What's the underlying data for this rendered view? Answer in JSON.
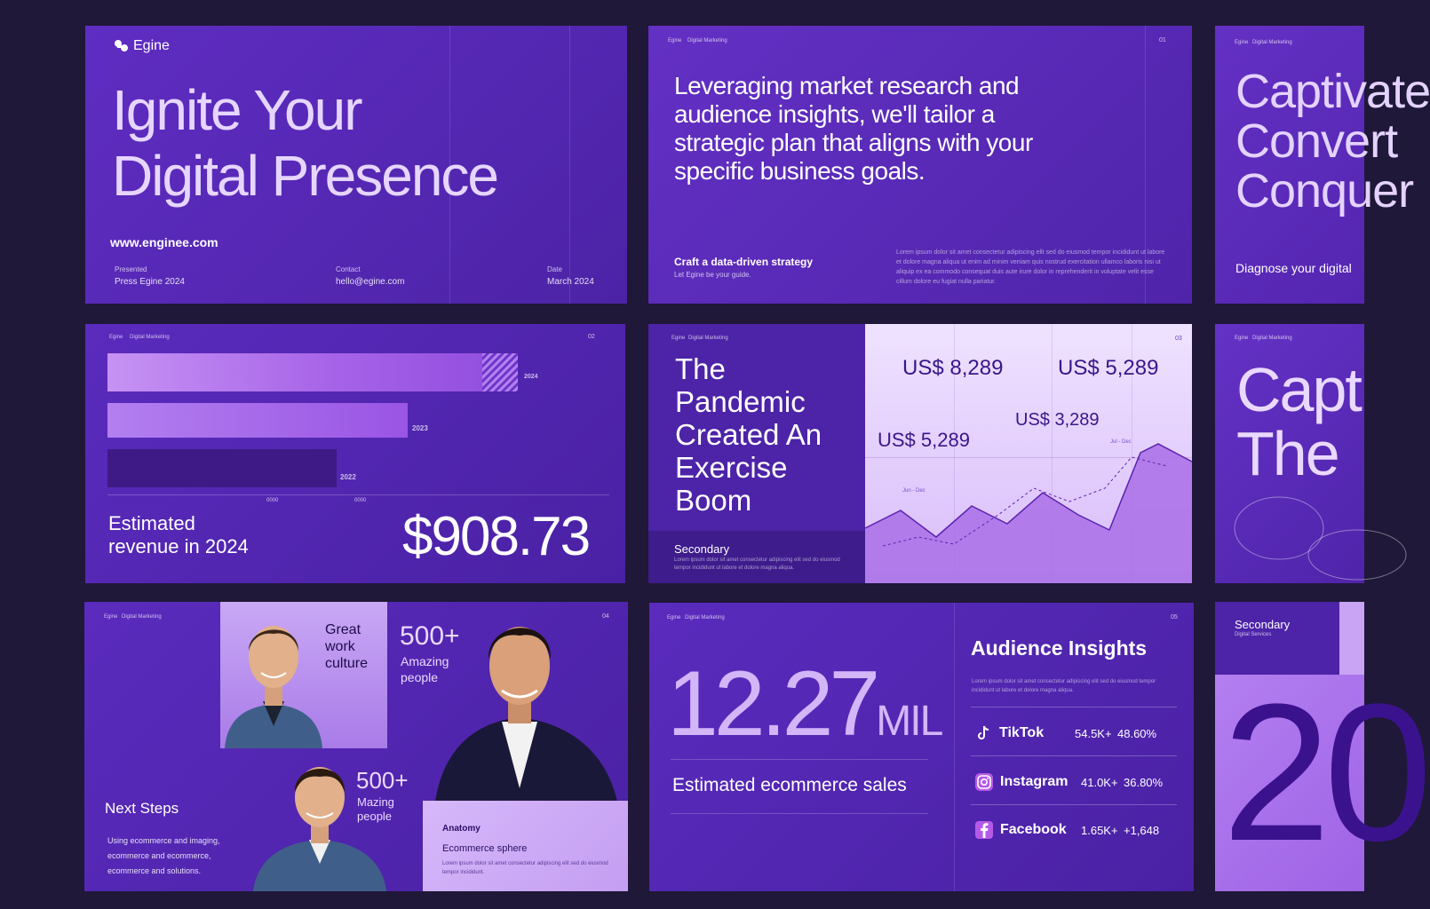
{
  "slide1": {
    "brand": "Egine",
    "title_line1": "Ignite Your",
    "title_line2": "Digital Presence",
    "website": "www.enginee.com",
    "meta": [
      {
        "label": "Presented",
        "value": "Press Egine 2024"
      },
      {
        "label": "Contact",
        "value": "hello@egine.com"
      },
      {
        "label": "Date",
        "value": "March 2024"
      }
    ]
  },
  "slide2": {
    "brand": "Egine",
    "tag": "Digital Marketing",
    "page": "01",
    "quote_lines": [
      "Leveraging market research and",
      "audience insights, we'll tailor a",
      "strategic plan that aligns with your",
      "specific business goals."
    ],
    "sub_title": "Craft a data-driven strategy",
    "sub_text": "Let Egine be your guide.",
    "body": "Lorem ipsum dolor sit amet consectetur adipiscing elit sed do eiusmod tempor incididunt ut labore et dolore magna aliqua ut enim ad minim veniam quis nostrud exercitation ullamco laboris nisi ut aliquip ex ea commodo consequat duis aute irure dolor in reprehenderit in voluptate velit esse cillum dolore eu fugiat nulla pariatur."
  },
  "slide3": {
    "brand": "Egine",
    "tag": "Digital Marketing",
    "title_lines": [
      "Captivate",
      "Convert",
      "Conquer"
    ],
    "subtitle": "Diagnose your digital"
  },
  "slide4": {
    "brand": "Egine",
    "tag": "Digital Marketing",
    "page": "02",
    "bar_labels": [
      "2024",
      "2023",
      "2022"
    ],
    "axis_labels": [
      "0000",
      "0000"
    ],
    "revenue_label_1": "Estimated",
    "revenue_label_2": "revenue in 2024",
    "revenue_value": "$908.73"
  },
  "slide5": {
    "brand": "Egine",
    "tag": "Digital Marketing",
    "page": "03",
    "title_lines": [
      "The",
      "Pandemic",
      "Created An",
      "Exercise",
      "Boom"
    ],
    "secondary": "Secondary",
    "secondary_text": "Lorem ipsum dolor sit amet consectetur adipiscing elit sed do eiusmod tempor incididunt ut labore et dolore magna aliqua.",
    "values": [
      "US$ 8,289",
      "US$ 5,289",
      "US$ 3,289",
      "US$ 5,289"
    ],
    "chart_tags": [
      "Jun - Dec",
      "Jul - Dec"
    ]
  },
  "slide6": {
    "brand": "Egine",
    "tag": "Digital Marketing",
    "title_lines": [
      "Capt",
      "The"
    ]
  },
  "slide7": {
    "brand": "Egine",
    "tag": "Digital Marketing",
    "page": "04",
    "culture_lines": [
      "Great",
      "work",
      "culture"
    ],
    "stat1_value": "500+",
    "stat1_lines": [
      "Amazing",
      "people"
    ],
    "stat2_value": "500+",
    "stat2_lines": [
      "Mazing",
      "people"
    ],
    "next_steps": "Next Steps",
    "next_text_lines": [
      "Using ecommerce and imaging,",
      "ecommerce and ecommerce,",
      "ecommerce and solutions."
    ],
    "card_title": "Anatomy",
    "card_subtitle": "Ecommerce sphere",
    "card_text": "Lorem ipsum dolor sit amet consectetur adipiscing elit sed do eiusmod tempor incididunt."
  },
  "slide8": {
    "brand": "Egine",
    "tag": "Digital Marketing",
    "page": "05",
    "big_number": "12.27",
    "big_unit": "MIL",
    "big_label": "Estimated ecommerce sales",
    "insights_title": "Audience Insights",
    "insights_text": "Lorem ipsum dolor sit amet consectetur adipiscing elit sed do eiusmod tempor incididunt ut labore et dolore magna aliqua.",
    "socials": [
      {
        "icon": "tiktok-icon",
        "name": "TikTok",
        "followers": "54.5K+",
        "rate": "48.60%"
      },
      {
        "icon": "instagram-icon",
        "name": "Instagram",
        "followers": "41.0K+",
        "rate": "36.80%"
      },
      {
        "icon": "facebook-icon",
        "name": "Facebook",
        "followers": "1.65K+",
        "rate": "+1,648"
      }
    ]
  },
  "slide9": {
    "secondary": "Secondary",
    "secondary_sub": "Digital Services",
    "big": "20"
  }
}
